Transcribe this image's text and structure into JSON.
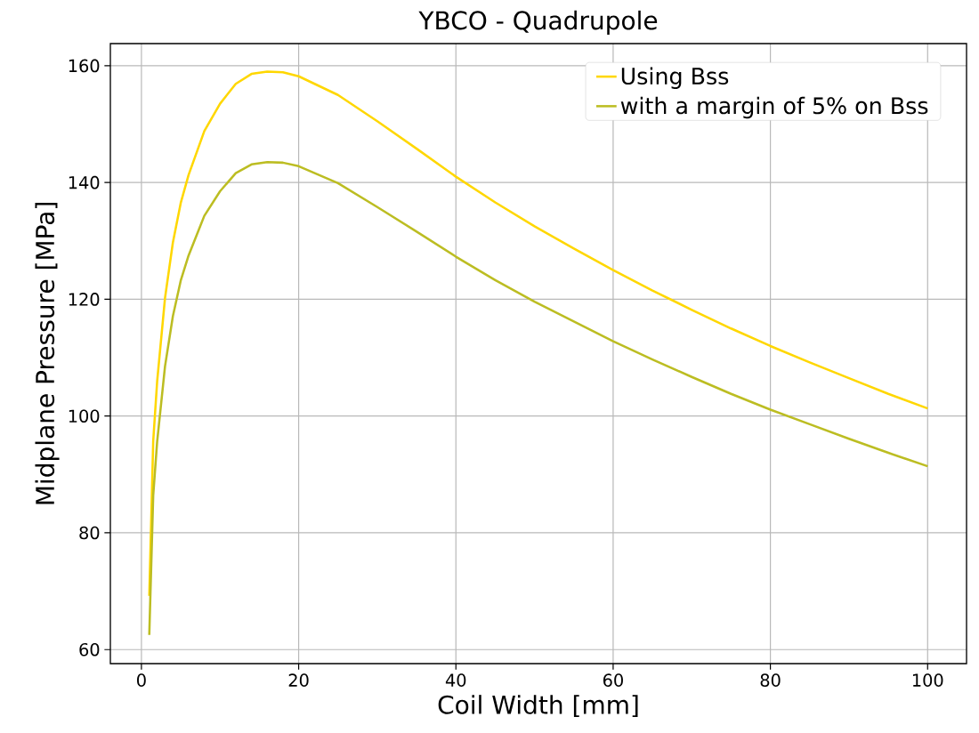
{
  "chart_data": {
    "type": "line",
    "title": "YBCO - Quadrupole",
    "xlabel": "Coil Width [mm]",
    "ylabel": "Midplane Pressure [MPa]",
    "x": [
      1,
      1.5,
      2,
      3,
      4,
      5,
      6,
      8,
      10,
      12,
      14,
      16,
      18,
      20,
      25,
      30,
      35,
      40,
      45,
      50,
      55,
      60,
      65,
      70,
      75,
      80,
      85,
      90,
      95,
      100
    ],
    "series": [
      {
        "name": "Using Bss",
        "color": "#ffd700",
        "values": [
          69.2,
          95.7,
          105.9,
          120.2,
          129.7,
          136.5,
          141.3,
          148.8,
          153.5,
          156.9,
          158.6,
          159.0,
          158.9,
          158.2,
          155.0,
          150.5,
          145.8,
          141.0,
          136.6,
          132.5,
          128.7,
          125.0,
          121.5,
          118.2,
          115.0,
          112.0,
          109.2,
          106.5,
          103.8,
          101.3
        ]
      },
      {
        "name": "with a margin of 5% on Bss",
        "color": "#bcbd22",
        "values": [
          62.5,
          86.4,
          95.6,
          108.5,
          117.1,
          123.2,
          127.5,
          134.3,
          138.5,
          141.6,
          143.1,
          143.5,
          143.4,
          142.8,
          139.9,
          135.8,
          131.6,
          127.3,
          123.3,
          119.6,
          116.2,
          112.8,
          109.7,
          106.7,
          103.8,
          101.1,
          98.6,
          96.1,
          93.7,
          91.4
        ]
      }
    ],
    "xlim": [
      -3.95,
      104.95
    ],
    "ylim": [
      57.6,
      163.8
    ],
    "xticks": [
      0,
      20,
      40,
      60,
      80,
      100
    ],
    "yticks": [
      60,
      80,
      100,
      120,
      140,
      160
    ],
    "grid": true,
    "legend": "top right",
    "line_style": "solid",
    "marker": "none"
  }
}
